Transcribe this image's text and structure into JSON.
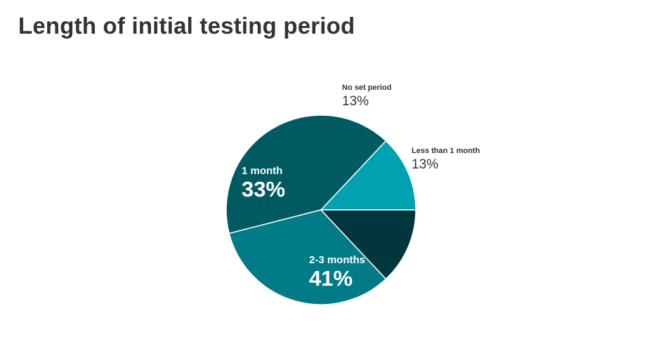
{
  "chart_data": {
    "type": "pie",
    "title": "Length of initial testing period",
    "slices": [
      {
        "label": "Less than 1 month",
        "value": 13,
        "value_label": "13%",
        "color": "#00a2b1",
        "label_position": "outside"
      },
      {
        "label": "2-3 months",
        "value": 41,
        "value_label": "41%",
        "color": "#005a62",
        "label_position": "inside"
      },
      {
        "label": "1 month",
        "value": 33,
        "value_label": "33%",
        "color": "#007b87",
        "label_position": "inside"
      },
      {
        "label": "No set period",
        "value": 13,
        "value_label": "13%",
        "color": "#00363c",
        "label_position": "outside"
      }
    ]
  }
}
